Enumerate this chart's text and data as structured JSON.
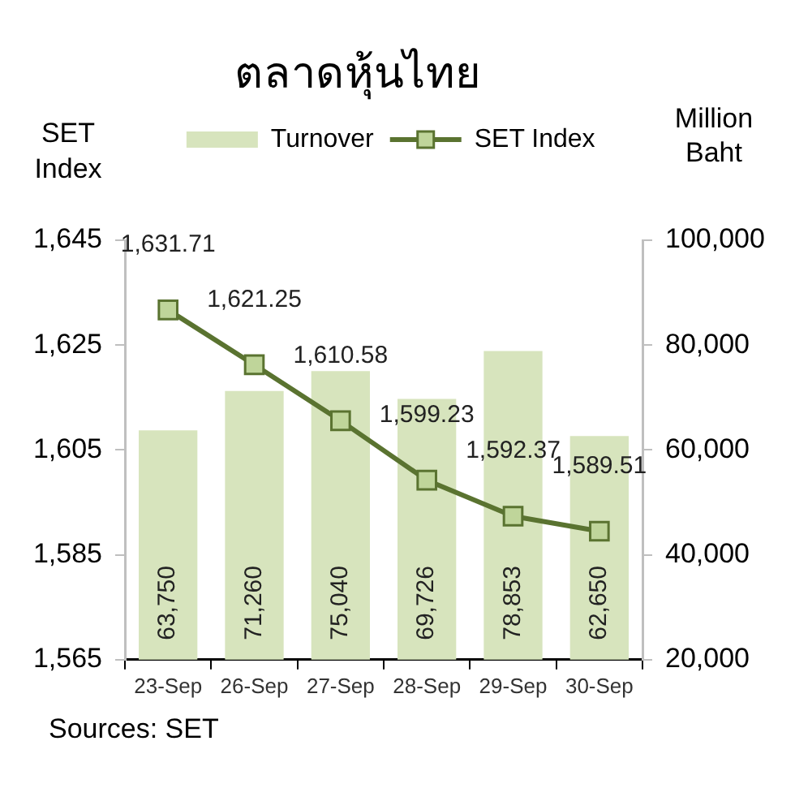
{
  "chart_data": {
    "type": "bar",
    "title": "ตลาดหุ้นไทย",
    "ylabel": "SET Index",
    "y2label": "Million Baht",
    "categories": [
      "23-Sep",
      "26-Sep",
      "27-Sep",
      "28-Sep",
      "29-Sep",
      "30-Sep"
    ],
    "series": [
      {
        "name": "Turnover",
        "axis": "y2",
        "color": "#d7e4bd",
        "values": [
          63750,
          71260,
          75040,
          69726,
          78853,
          62650
        ],
        "value_labels": [
          "63,750",
          "71,260",
          "75,040",
          "69,726",
          "78,853",
          "62,650"
        ]
      },
      {
        "name": "SET Index",
        "type": "line",
        "color": "#5a7330",
        "values": [
          1631.71,
          1621.25,
          1610.58,
          1599.23,
          1592.37,
          1589.51
        ],
        "value_labels": [
          "1,631.71",
          "1,621.25",
          "1,610.58",
          "1,599.23",
          "1,592.37",
          "1,589.51"
        ]
      }
    ],
    "ylim": [
      1565,
      1645
    ],
    "yticks": [
      {
        "value": 1565,
        "label": "1,565"
      },
      {
        "value": 1585,
        "label": "1,585"
      },
      {
        "value": 1605,
        "label": "1,605"
      },
      {
        "value": 1625,
        "label": "1,625"
      },
      {
        "value": 1645,
        "label": "1,645"
      }
    ],
    "y2lim": [
      20000,
      100000
    ],
    "y2ticks": [
      {
        "value": 20000,
        "label": "20,000"
      },
      {
        "value": 40000,
        "label": "40,000"
      },
      {
        "value": 60000,
        "label": "60,000"
      },
      {
        "value": 80000,
        "label": "80,000"
      },
      {
        "value": 100000,
        "label": "100,000"
      }
    ],
    "marker": "square",
    "legend": "top",
    "grid": false,
    "annotations": [
      "Sources: SET"
    ]
  }
}
